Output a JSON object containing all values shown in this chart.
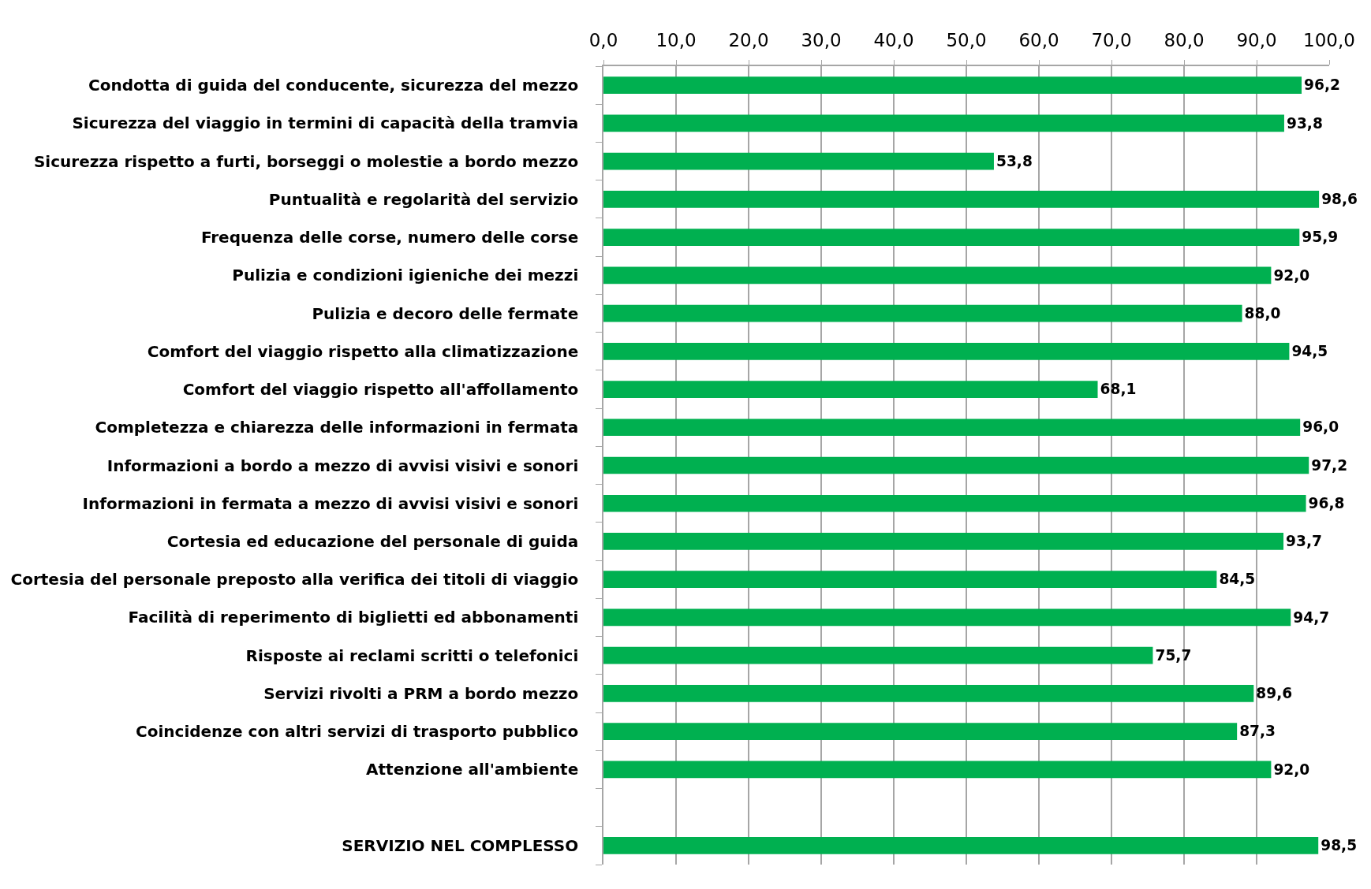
{
  "chart_data": {
    "type": "bar",
    "orientation": "horizontal",
    "categories": [
      "Condotta di guida del conducente, sicurezza del mezzo",
      "Sicurezza del viaggio in termini di capacità della tramvia",
      "Sicurezza rispetto a furti, borseggi o molestie a bordo mezzo",
      "Puntualità e regolarità del servizio",
      "Frequenza delle corse, numero delle corse",
      "Pulizia e condizioni igieniche dei mezzi",
      "Pulizia e decoro delle fermate",
      "Comfort del viaggio rispetto alla climatizzazione",
      "Comfort del viaggio rispetto all'affollamento",
      "Completezza e chiarezza delle informazioni in fermata",
      "Informazioni a bordo a mezzo di avvisi visivi e sonori",
      "Informazioni in fermata a mezzo di avvisi visivi e sonori",
      "Cortesia ed educazione del personale di guida",
      "Cortesia del personale preposto alla verifica dei titoli di viaggio",
      "Facilità di reperimento di biglietti ed abbonamenti",
      "Risposte ai reclami scritti o telefonici",
      "Servizi rivolti a PRM a bordo mezzo",
      "Coincidenze con altri servizi di trasporto pubblico",
      "Attenzione all'ambiente",
      null,
      "SERVIZIO NEL COMPLESSO"
    ],
    "values": [
      96.2,
      93.8,
      53.8,
      98.6,
      95.9,
      92.0,
      88.0,
      94.5,
      68.1,
      96.0,
      97.2,
      96.8,
      93.7,
      84.5,
      94.7,
      75.7,
      89.6,
      87.3,
      92.0,
      null,
      98.5
    ],
    "value_labels": [
      "96,2",
      "93,8",
      "53,8",
      "98,6",
      "95,9",
      "92,0",
      "88,0",
      "94,5",
      "68,1",
      "96,0",
      "97,2",
      "96,8",
      "93,7",
      "84,5",
      "94,7",
      "75,7",
      "89,6",
      "87,3",
      "92,0",
      null,
      "98,5"
    ],
    "color": "#00b050",
    "xlim": [
      0,
      100
    ],
    "xticks": [
      {
        "value": 0,
        "label": "0,0"
      },
      {
        "value": 10,
        "label": "10,0"
      },
      {
        "value": 20,
        "label": "20,0"
      },
      {
        "value": 30,
        "label": "30,0"
      },
      {
        "value": 40,
        "label": "40,0"
      },
      {
        "value": 50,
        "label": "50,0"
      },
      {
        "value": 60,
        "label": "60,0"
      },
      {
        "value": 70,
        "label": "70,0"
      },
      {
        "value": 80,
        "label": "80,0"
      },
      {
        "value": 90,
        "label": "90,0"
      },
      {
        "value": 100,
        "label": "100,0"
      }
    ],
    "grid": "x"
  }
}
